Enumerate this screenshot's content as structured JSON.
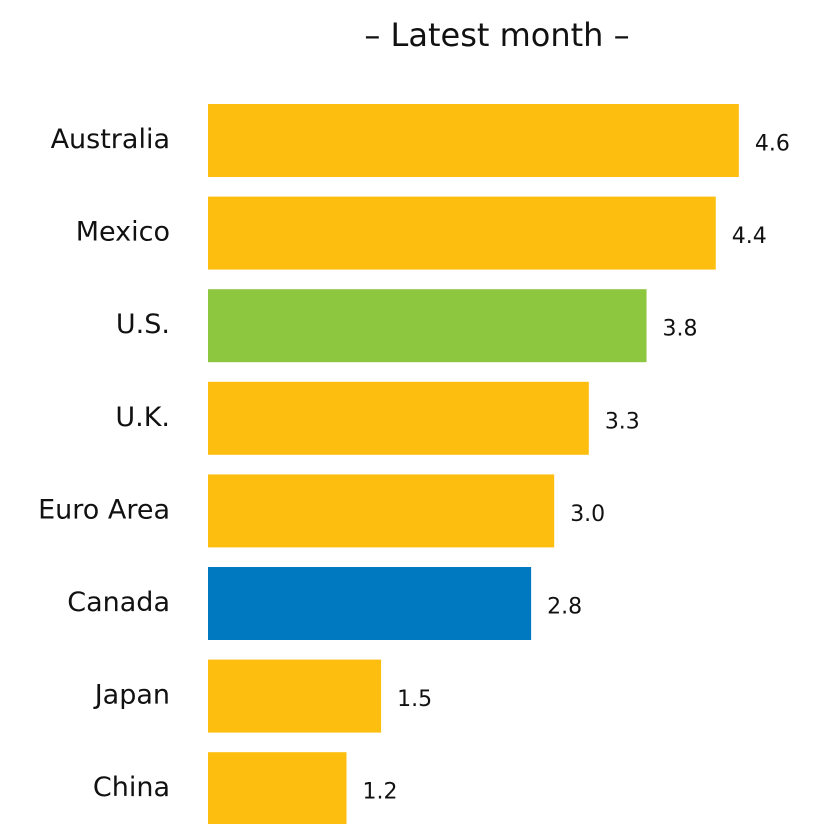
{
  "chart_data": {
    "type": "bar",
    "orientation": "horizontal",
    "title": "– Latest month –",
    "categories": [
      "Australia",
      "Mexico",
      "U.S.",
      "U.K.",
      "Euro Area",
      "Canada",
      "Japan",
      "China"
    ],
    "values": [
      4.6,
      4.4,
      3.8,
      3.3,
      3.0,
      2.8,
      1.5,
      1.2
    ],
    "value_labels": [
      "4.6",
      "4.4",
      "3.8",
      "3.3",
      "3.0",
      "2.8",
      "1.5",
      "1.2"
    ],
    "colors": [
      "#fdbe10",
      "#fdbe10",
      "#8dc63f",
      "#fdbe10",
      "#fdbe10",
      "#0079c1",
      "#fdbe10",
      "#fdbe10"
    ]
  }
}
